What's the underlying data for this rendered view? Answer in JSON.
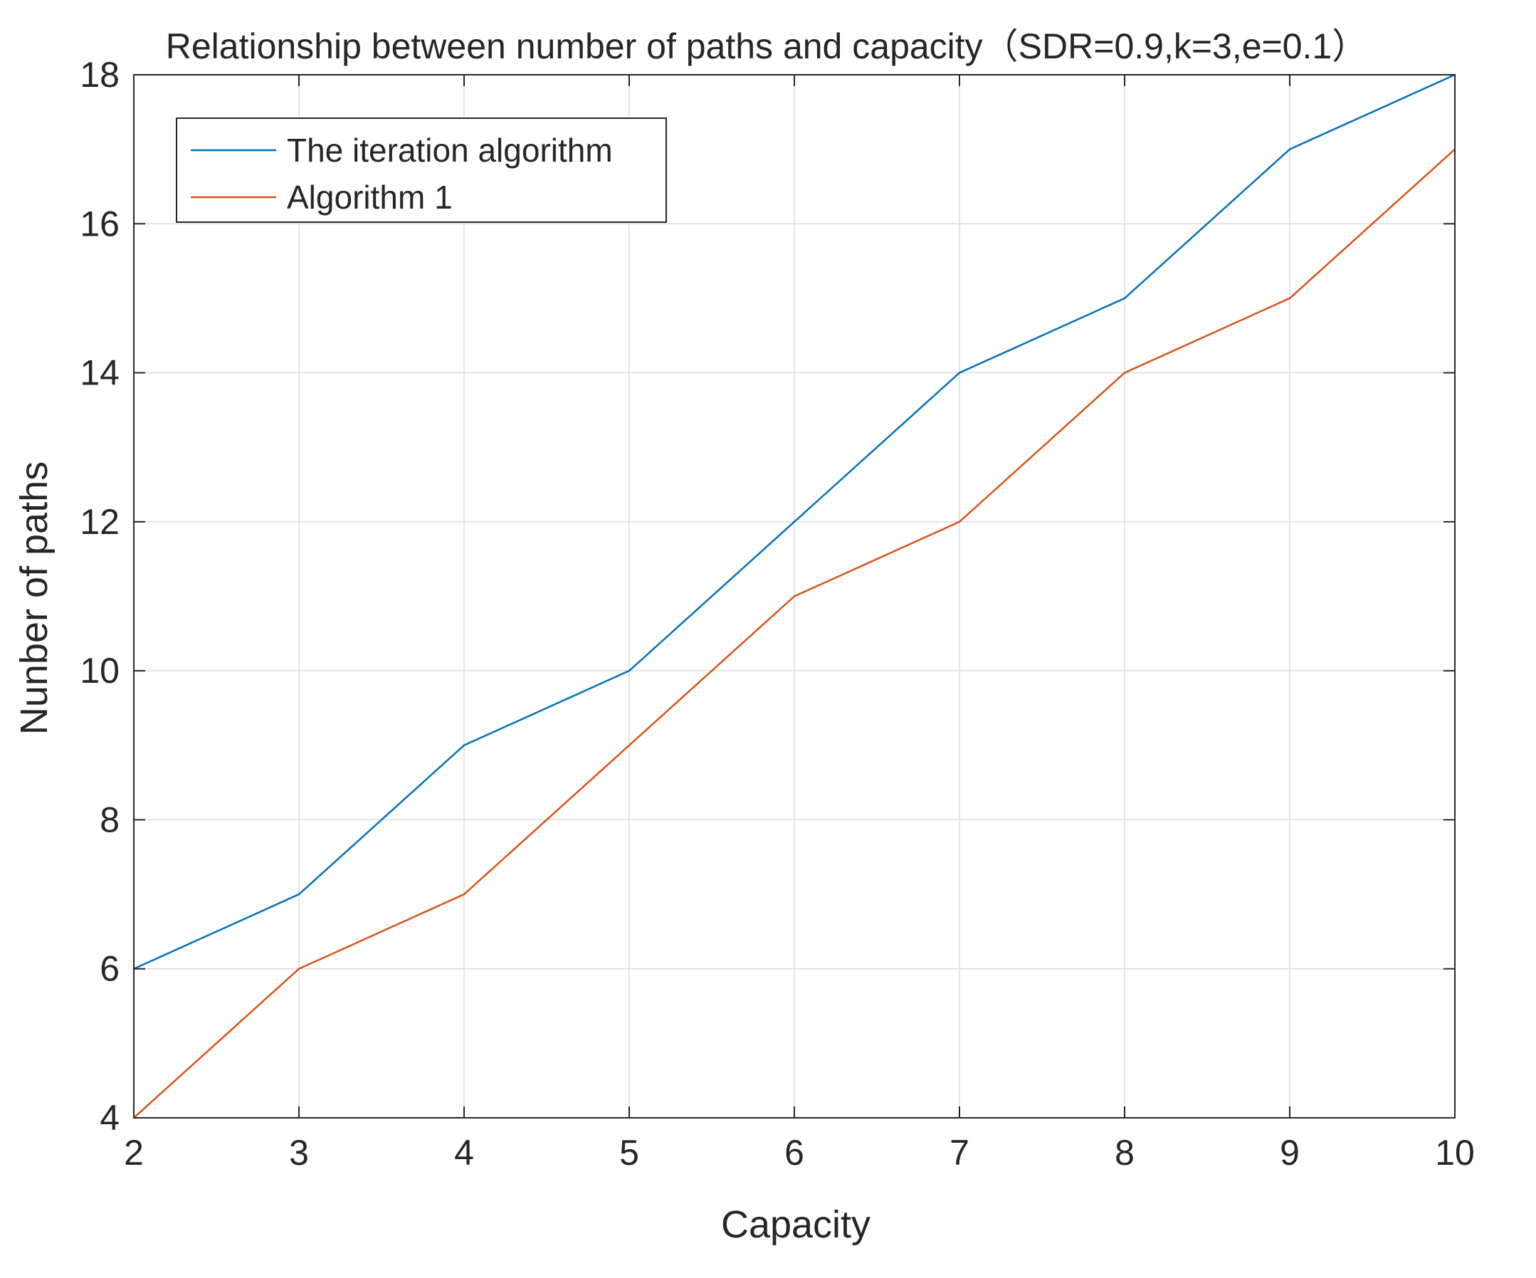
{
  "chart_data": {
    "type": "line",
    "title": "Relationship between number of paths and capacity（SDR=0.9,k=3,e=0.1）",
    "xlabel": "Capacity",
    "ylabel": "Nunber of paths",
    "xlim": [
      2,
      10
    ],
    "ylim": [
      4,
      18
    ],
    "xticks": [
      "2",
      "3",
      "4",
      "5",
      "6",
      "7",
      "8",
      "9",
      "10"
    ],
    "yticks": [
      "4",
      "6",
      "8",
      "10",
      "12",
      "14",
      "16",
      "18"
    ],
    "grid": true,
    "legend_position": "top-left",
    "x": [
      2,
      3,
      4,
      5,
      6,
      7,
      8,
      9,
      10
    ],
    "series": [
      {
        "name": "The iteration algorithm",
        "color": "#0072BD",
        "values": [
          6,
          7,
          9,
          10,
          12,
          14,
          15,
          17,
          18
        ]
      },
      {
        "name": "Algorithm 1",
        "color": "#D95319",
        "values": [
          4,
          6,
          7,
          9,
          11,
          12,
          14,
          15,
          17
        ]
      }
    ]
  }
}
